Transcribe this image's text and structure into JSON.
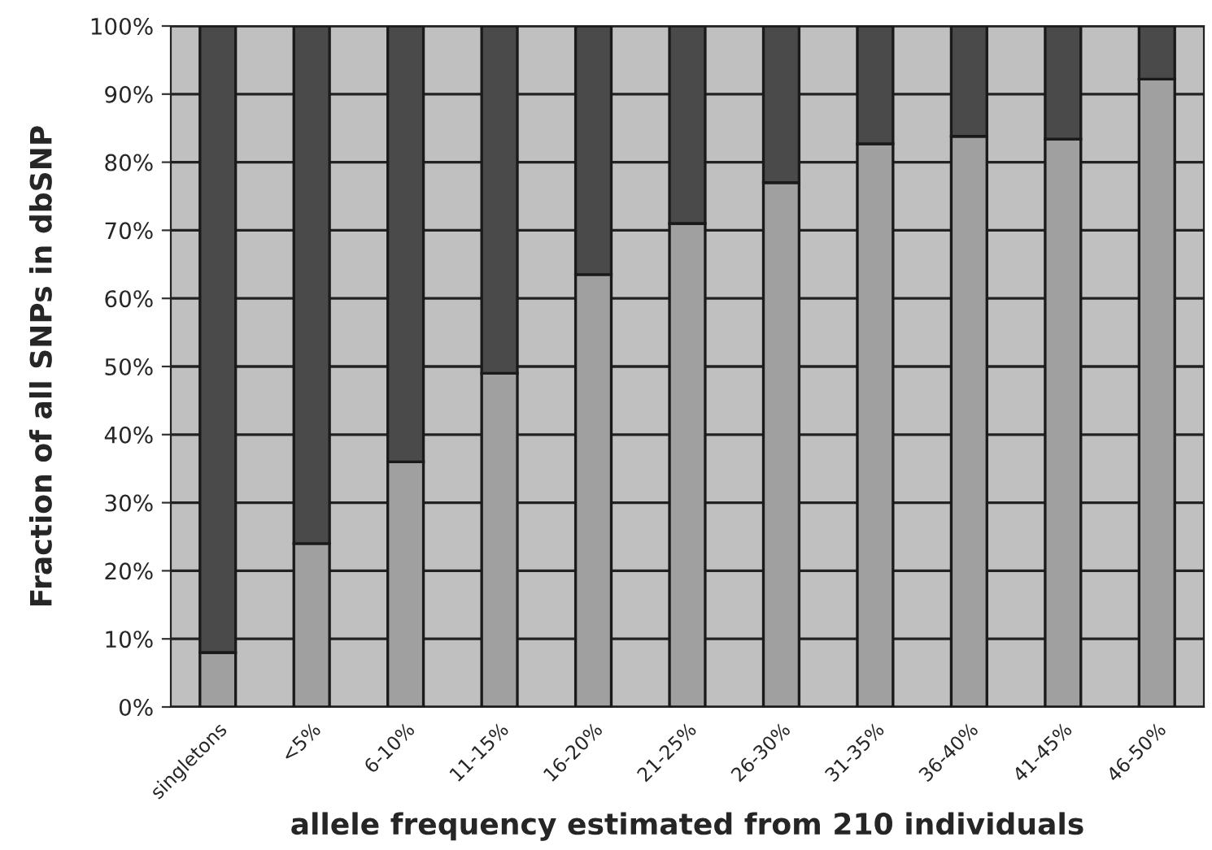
{
  "chart_data": {
    "type": "bar",
    "stacked": true,
    "xlabel": "allele frequency estimated from 210 individuals",
    "ylabel": "Fraction of all SNPs in dbSNP",
    "categories": [
      "singletons",
      "<5%",
      "6-10%",
      "11-15%",
      "16-20%",
      "21-25%",
      "26-30%",
      "31-35%",
      "36-40%",
      "41-45%",
      "46-50%"
    ],
    "series": [
      {
        "color": "#a0a0a0",
        "values": [
          8,
          24,
          36,
          49,
          63.5,
          71,
          77,
          82.7,
          83.8,
          83.4,
          92.2
        ]
      },
      {
        "color": "#4a4a4a",
        "values": [
          92,
          76,
          64,
          51,
          36.5,
          29,
          23,
          17.3,
          16.2,
          16.6,
          7.8
        ]
      }
    ],
    "ylim": [
      0,
      100
    ],
    "yticks": [
      {
        "value": 0,
        "label": "0%"
      },
      {
        "value": 10,
        "label": "10%"
      },
      {
        "value": 20,
        "label": "20%"
      },
      {
        "value": 30,
        "label": "30%"
      },
      {
        "value": 40,
        "label": "40%"
      },
      {
        "value": 50,
        "label": "50%"
      },
      {
        "value": 60,
        "label": "60%"
      },
      {
        "value": 70,
        "label": "70%"
      },
      {
        "value": 80,
        "label": "80%"
      },
      {
        "value": 90,
        "label": "90%"
      },
      {
        "value": 100,
        "label": "100%"
      }
    ],
    "grid": "y"
  }
}
